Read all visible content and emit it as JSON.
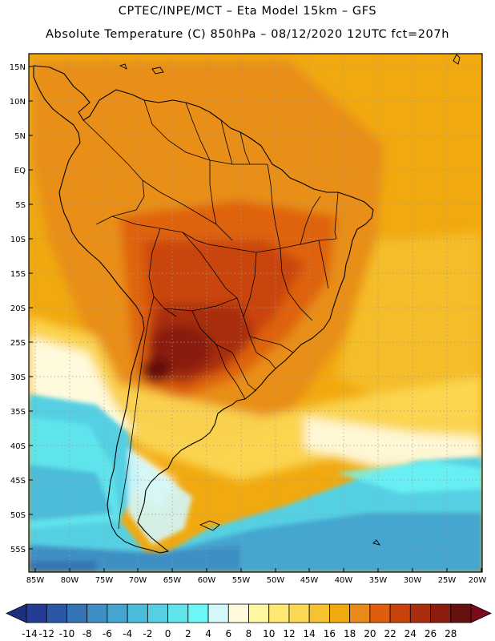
{
  "header": {
    "line1": "CPTEC/INPE/MCT –  Eta Model 15km – GFS",
    "line2": "Absolute Temperature (C) 850hPa – 08/12/2020 12UTC fct=207h"
  },
  "map": {
    "lat_labels": [
      "15N",
      "10N",
      "5N",
      "EQ",
      "5S",
      "10S",
      "15S",
      "20S",
      "25S",
      "30S",
      "35S",
      "40S",
      "45S",
      "50S",
      "55S"
    ],
    "lon_labels": [
      "85W",
      "80W",
      "75W",
      "70W",
      "65W",
      "60W",
      "55W",
      "50W",
      "45W",
      "40W",
      "35W",
      "30W",
      "25W",
      "20W"
    ]
  },
  "colorbar": {
    "labels": [
      "-14",
      "-12",
      "-10",
      "-8",
      "-6",
      "-4",
      "-2",
      "0",
      "2",
      "4",
      "6",
      "8",
      "10",
      "12",
      "14",
      "16",
      "18",
      "20",
      "22",
      "24",
      "26",
      "28"
    ],
    "colors": [
      "#253c95",
      "#2c56a6",
      "#3474b5",
      "#3e8fc4",
      "#44a6d0",
      "#4bbcd9",
      "#55d0e3",
      "#5fe4ec",
      "#6df6f8",
      "#d3f7fb",
      "#fffadc",
      "#fff6a0",
      "#ffe872",
      "#fcd954",
      "#f6c230",
      "#f1a910",
      "#e8891a",
      "#de5e0c",
      "#c8430c",
      "#a82e0e",
      "#8a1d10",
      "#661010"
    ],
    "under_color": "#1e2f80",
    "over_color": "#7a0a1c"
  }
}
